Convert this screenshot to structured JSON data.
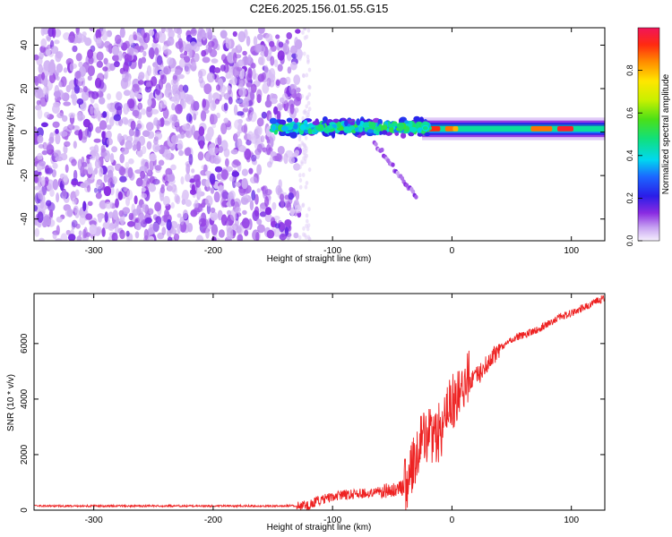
{
  "title": "C2E6.2025.156.01.55.G15",
  "chart_data": [
    {
      "type": "heatmap",
      "xlabel": "Height of straight line (km)",
      "ylabel": "Frequency (Hz)",
      "xlim": [
        -350,
        128
      ],
      "ylim": [
        -50,
        48
      ],
      "xticks": [
        -300,
        -200,
        -100,
        0,
        100
      ],
      "yticks": [
        -40,
        -20,
        0,
        20,
        40
      ],
      "colorbar": {
        "label": "Normalized spectral amplitude",
        "range": [
          0.0,
          1.0
        ],
        "ticks": [
          0.0,
          0.2,
          0.4,
          0.6,
          0.8
        ],
        "tick_labels": [
          "0.0",
          "0.2",
          "0.4",
          "0.6",
          "0.8"
        ]
      },
      "regions": [
        {
          "x_range": [
            -350,
            -128
          ],
          "freq_range": [
            -50,
            48
          ],
          "amplitude": [
            0.0,
            0.15
          ],
          "description": "noise"
        },
        {
          "x_range": [
            -150,
            -20
          ],
          "freq_center": 2,
          "freq_width": 8,
          "amplitude": [
            0.3,
            0.55
          ]
        },
        {
          "x_range": [
            -25,
            128
          ],
          "freq_center": 1.5,
          "freq_width": 5,
          "amplitude": [
            0.5,
            1.0
          ]
        },
        {
          "x_range": [
            -65,
            -30
          ],
          "freq_center_start": -5,
          "freq_center_end": -30,
          "amplitude": [
            0.05,
            0.15
          ],
          "description": "faint descending branch"
        }
      ]
    },
    {
      "type": "line",
      "xlabel": "Height of straight line (km)",
      "ylabel": "SNR (10 * v/v)",
      "xlim": [
        -350,
        128
      ],
      "ylim": [
        0,
        7800
      ],
      "xticks": [
        -300,
        -200,
        -100,
        0,
        100
      ],
      "yticks": [
        0,
        2000,
        4000,
        6000
      ],
      "series": [
        {
          "color": "#ee2222",
          "x": [
            -350,
            -300,
            -250,
            -200,
            -150,
            -130,
            -120,
            -110,
            -100,
            -90,
            -80,
            -70,
            -60,
            -50,
            -40,
            -35,
            -30,
            -25,
            -20,
            -15,
            -10,
            -5,
            0,
            5,
            10,
            15,
            20,
            25,
            30,
            35,
            40,
            45,
            50,
            55,
            60,
            70,
            80,
            90,
            100,
            110,
            120,
            128
          ],
          "y": [
            150,
            150,
            150,
            150,
            150,
            160,
            200,
            350,
            500,
            550,
            600,
            600,
            700,
            700,
            800,
            1200,
            1800,
            2500,
            2600,
            2800,
            2800,
            3500,
            3800,
            4300,
            4500,
            4700,
            4800,
            5000,
            5300,
            5600,
            5800,
            6000,
            6150,
            6250,
            6300,
            6450,
            6700,
            6950,
            7100,
            7300,
            7500,
            7650
          ]
        }
      ]
    }
  ]
}
